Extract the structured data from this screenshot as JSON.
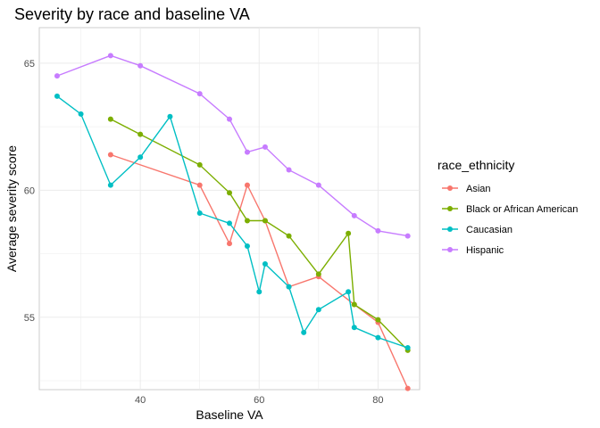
{
  "chart_data": {
    "type": "line",
    "title": "Severity by race and baseline VA",
    "xlabel": "Baseline VA",
    "ylabel": "Average severity score",
    "xlim": [
      23,
      87
    ],
    "ylim": [
      52.15,
      66.4
    ],
    "x_ticks": [
      40,
      60,
      80
    ],
    "x_minor_ticks": [
      30,
      50,
      70
    ],
    "y_ticks": [
      55,
      60,
      65
    ],
    "y_minor_ticks": [
      52.5,
      57.5,
      62.5
    ],
    "grid": true,
    "legend_title": "race_ethnicity",
    "legend_position": "right",
    "series": [
      {
        "name": "Asian",
        "color": "#F8766D",
        "x": [
          35,
          50,
          55,
          58,
          61,
          65,
          70,
          76,
          80,
          85
        ],
        "y": [
          61.4,
          60.2,
          57.9,
          60.2,
          58.8,
          56.2,
          56.6,
          55.5,
          54.8,
          52.2
        ]
      },
      {
        "name": "Black or African American",
        "color": "#7CAE00",
        "x": [
          35,
          40,
          50,
          55,
          58,
          61,
          65,
          70,
          75,
          76,
          80,
          85
        ],
        "y": [
          62.8,
          62.2,
          61.0,
          59.9,
          58.8,
          58.8,
          58.2,
          56.7,
          58.3,
          55.5,
          54.9,
          53.7
        ]
      },
      {
        "name": "Caucasian",
        "color": "#00BFC4",
        "x": [
          26,
          30,
          35,
          40,
          45,
          50,
          55,
          58,
          60,
          61,
          65,
          67.5,
          70,
          75,
          76,
          80,
          85
        ],
        "y": [
          63.7,
          63.0,
          60.2,
          61.3,
          62.9,
          59.1,
          58.7,
          57.8,
          56.0,
          57.1,
          56.2,
          54.4,
          55.3,
          56.0,
          54.6,
          54.2,
          53.8
        ]
      },
      {
        "name": "Hispanic",
        "color": "#C77CFF",
        "x": [
          26,
          35,
          40,
          50,
          55,
          58,
          61,
          65,
          70,
          76,
          80,
          85
        ],
        "y": [
          64.5,
          65.3,
          64.9,
          63.8,
          62.8,
          61.5,
          61.7,
          60.8,
          60.2,
          59.0,
          58.4,
          58.2
        ]
      }
    ]
  }
}
